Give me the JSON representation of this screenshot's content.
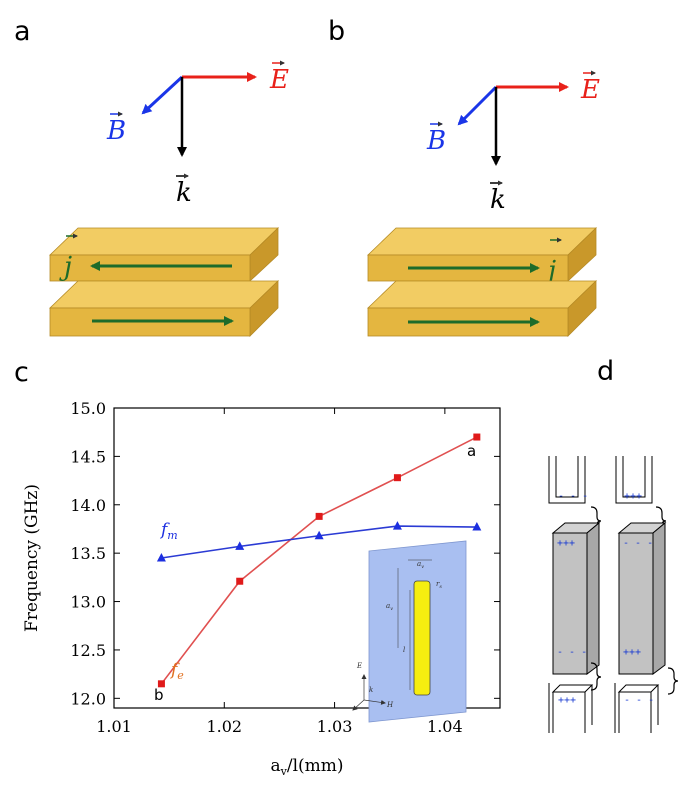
{
  "panels": {
    "a": "a",
    "b": "b",
    "c": "c",
    "d": "d"
  },
  "vectors": {
    "E": "E",
    "B": "B",
    "k": "k",
    "j": "j"
  },
  "colors": {
    "E": "#e8211a",
    "B": "#1a35e8",
    "k": "#000000",
    "current": "#1d6b2a",
    "slab_top": "#f2cc63",
    "slab_front": "#e4b640",
    "slab_side": "#c9982a",
    "fe_line": "#e05050",
    "fe_marker": "#e01a1a",
    "fm_line": "#2b3bd4",
    "fm_marker": "#1c2fe0",
    "fe_label": "#e07020",
    "fm_label": "#1c2fe0",
    "inset_bg": "#a9bff1",
    "inset_wire": "#f6ee10",
    "rod": "#c2c2c2",
    "charge": "#1a3bd1"
  },
  "chart_data": {
    "type": "line",
    "xlabel": "a",
    "xlabel_sub": "v",
    "xlabel_rest": "/l(mm)",
    "ylabel": "Frequency (GHz)",
    "xlim": [
      1.01,
      1.045
    ],
    "ylim": [
      11.9,
      15.0
    ],
    "xticks": [
      "1.01",
      "1.02",
      "1.03",
      "1.04"
    ],
    "yticks": [
      "12.0",
      "12.5",
      "13.0",
      "13.5",
      "14.0",
      "14.5",
      "15.0"
    ],
    "x": [
      1.0143,
      1.0214,
      1.0286,
      1.0357,
      1.0429
    ],
    "series": [
      {
        "name": "f",
        "sub": "e",
        "marker": "square",
        "values": [
          12.15,
          13.21,
          13.88,
          14.28,
          14.7
        ]
      },
      {
        "name": "f",
        "sub": "m",
        "marker": "triangle",
        "values": [
          13.45,
          13.57,
          13.68,
          13.78,
          13.77
        ]
      }
    ],
    "annotations": {
      "a": "a",
      "b": "b"
    },
    "inset": {
      "E": "E",
      "k": "k",
      "H": "H",
      "l": "l",
      "a": "a",
      "a_sub": "v",
      "r": "r",
      "r_sub": "s"
    }
  },
  "panel_d": {
    "plus": "+++",
    "minus": "- - -"
  }
}
